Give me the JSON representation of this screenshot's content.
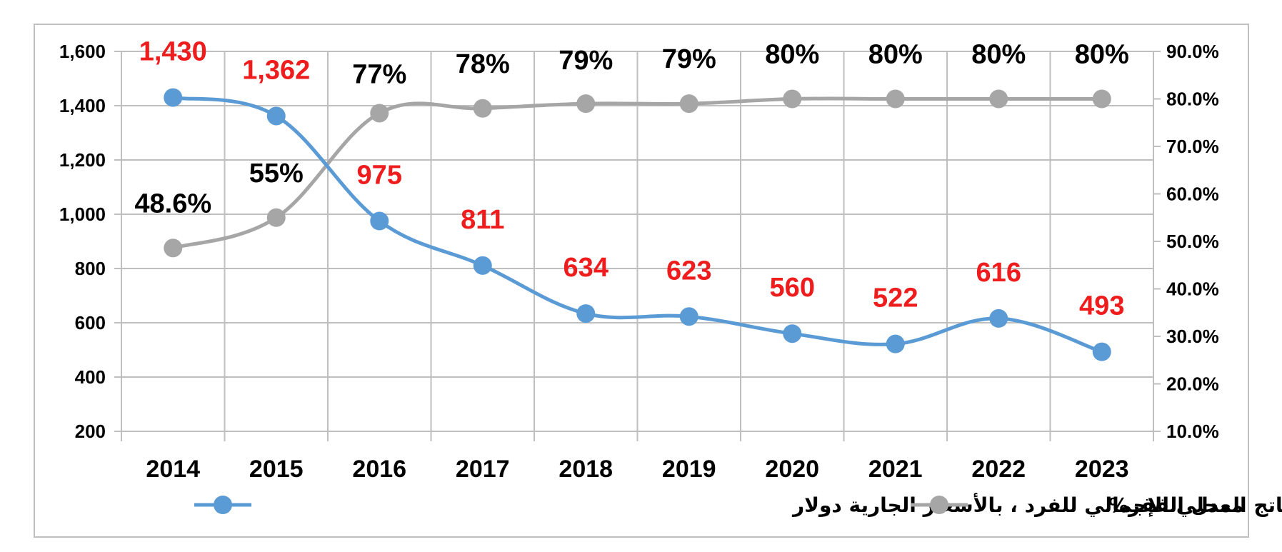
{
  "chart_data": {
    "type": "line",
    "categories": [
      "2014",
      "2015",
      "2016",
      "2017",
      "2018",
      "2019",
      "2020",
      "2021",
      "2022",
      "2023"
    ],
    "series": [
      {
        "name": "الناتج المحلي الإجمالي للفرد ، بالأسعار الجارية دولار",
        "axis": "left",
        "values": [
          1430,
          1362,
          975,
          811,
          634,
          623,
          560,
          522,
          616,
          493
        ],
        "labels": [
          "1,430",
          "1,362",
          "975",
          "811",
          "634",
          "623",
          "560",
          "522",
          "616",
          "493"
        ],
        "color": "#5b9bd5",
        "label_color": "#ee1c1c"
      },
      {
        "name": "معدل الفقر%",
        "axis": "right",
        "values": [
          48.6,
          55,
          77,
          78,
          79,
          79,
          80,
          80,
          80,
          80
        ],
        "labels": [
          "48.6%",
          "55%",
          "77%",
          "78%",
          "79%",
          "79%",
          "80%",
          "80%",
          "80%",
          "80%"
        ],
        "color": "#a6a6a6",
        "label_color": "#000000"
      }
    ],
    "y_left": {
      "ylim": [
        200,
        1600
      ],
      "ticks": [
        "200",
        "400",
        "600",
        "800",
        "1,000",
        "1,200",
        "1,400",
        "1,600"
      ]
    },
    "y_right": {
      "ylim": [
        10,
        90
      ],
      "ticks": [
        "10.0%",
        "20.0%",
        "30.0%",
        "40.0%",
        "50.0%",
        "60.0%",
        "70.0%",
        "80.0%",
        "90.0%"
      ]
    },
    "grid": true,
    "legend": "bottom"
  }
}
